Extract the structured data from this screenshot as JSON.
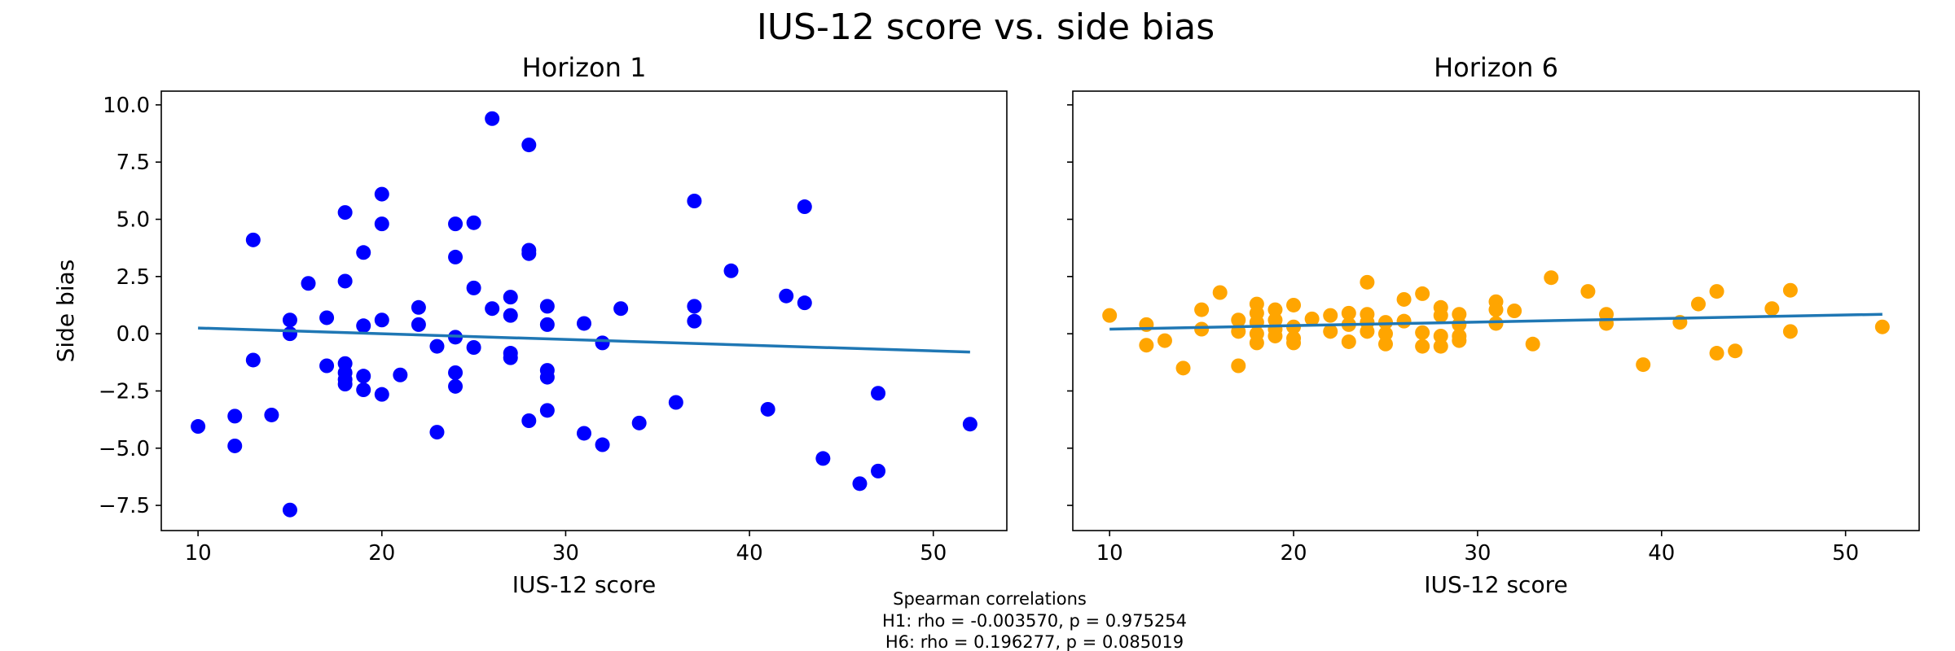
{
  "figure": {
    "suptitle": "IUS-12 score vs. side bias",
    "footnote": [
      "Spearman correlations",
      "H1: rho = -0.003570, p = 0.975254",
      "H6: rho = 0.196277, p = 0.085019"
    ]
  },
  "chart_data": [
    {
      "type": "scatter",
      "title": "Horizon 1",
      "xlabel": "IUS-12 score",
      "ylabel": "Side bias",
      "xlim": [
        8,
        54
      ],
      "ylim": [
        -8.6,
        10.6
      ],
      "xticks": [
        10,
        20,
        30,
        40,
        50
      ],
      "yticks": [
        -7.5,
        -5.0,
        -2.5,
        0.0,
        2.5,
        5.0,
        7.5,
        10.0
      ],
      "ytick_labels": [
        "−7.5",
        "−5.0",
        "−2.5",
        "0.0",
        "2.5",
        "5.0",
        "7.5",
        "10.0"
      ],
      "marker_color": "#0000ff",
      "trend_color": "#1f77b4",
      "trend": {
        "x": [
          10,
          52
        ],
        "y": [
          0.25,
          -0.8
        ]
      },
      "points": [
        [
          10,
          -4.05
        ],
        [
          12,
          -3.6
        ],
        [
          12,
          -4.9
        ],
        [
          13,
          4.1
        ],
        [
          13,
          -1.15
        ],
        [
          14,
          -3.55
        ],
        [
          15,
          0.6
        ],
        [
          15,
          0.0
        ],
        [
          15,
          -7.7
        ],
        [
          16,
          2.2
        ],
        [
          17,
          0.7
        ],
        [
          17,
          -1.4
        ],
        [
          18,
          5.3
        ],
        [
          18,
          2.3
        ],
        [
          18,
          -1.3
        ],
        [
          18,
          -1.7
        ],
        [
          18,
          -2.0
        ],
        [
          18,
          -2.2
        ],
        [
          19,
          3.55
        ],
        [
          19,
          0.35
        ],
        [
          19,
          -1.85
        ],
        [
          19,
          -2.45
        ],
        [
          20,
          6.1
        ],
        [
          20,
          4.8
        ],
        [
          20,
          0.6
        ],
        [
          20,
          -2.65
        ],
        [
          21,
          -1.8
        ],
        [
          22,
          1.15
        ],
        [
          22,
          0.4
        ],
        [
          23,
          -0.55
        ],
        [
          23,
          -4.3
        ],
        [
          24,
          4.8
        ],
        [
          24,
          3.35
        ],
        [
          24,
          -0.15
        ],
        [
          24,
          -1.7
        ],
        [
          24,
          -2.3
        ],
        [
          25,
          4.85
        ],
        [
          25,
          2.0
        ],
        [
          25,
          -0.6
        ],
        [
          26,
          9.4
        ],
        [
          26,
          1.1
        ],
        [
          27,
          1.6
        ],
        [
          27,
          0.8
        ],
        [
          27,
          -0.85
        ],
        [
          27,
          -1.05
        ],
        [
          28,
          8.25
        ],
        [
          28,
          3.65
        ],
        [
          28,
          3.5
        ],
        [
          28,
          -3.8
        ],
        [
          29,
          1.2
        ],
        [
          29,
          0.4
        ],
        [
          29,
          -1.6
        ],
        [
          29,
          -1.9
        ],
        [
          29,
          -3.35
        ],
        [
          31,
          0.45
        ],
        [
          31,
          -4.35
        ],
        [
          32,
          -0.4
        ],
        [
          32,
          -4.85
        ],
        [
          33,
          1.1
        ],
        [
          34,
          -3.9
        ],
        [
          36,
          -3.0
        ],
        [
          37,
          5.8
        ],
        [
          37,
          1.2
        ],
        [
          37,
          0.55
        ],
        [
          39,
          2.75
        ],
        [
          41,
          -3.3
        ],
        [
          42,
          1.65
        ],
        [
          43,
          5.55
        ],
        [
          43,
          1.35
        ],
        [
          44,
          -5.45
        ],
        [
          46,
          -6.55
        ],
        [
          47,
          -2.6
        ],
        [
          47,
          -6.0
        ],
        [
          52,
          -3.95
        ]
      ]
    },
    {
      "type": "scatter",
      "title": "Horizon 6",
      "xlabel": "IUS-12 score",
      "ylabel": "",
      "xlim": [
        8,
        54
      ],
      "ylim": [
        -8.6,
        10.6
      ],
      "xticks": [
        10,
        20,
        30,
        40,
        50
      ],
      "yticks": [
        -7.5,
        -5.0,
        -2.5,
        0.0,
        2.5,
        5.0,
        7.5,
        10.0
      ],
      "marker_color": "#ffa500",
      "trend_color": "#1f77b4",
      "trend": {
        "x": [
          10,
          52
        ],
        "y": [
          0.2,
          0.85
        ]
      },
      "points": [
        [
          10,
          0.8
        ],
        [
          12,
          0.4
        ],
        [
          12,
          -0.5
        ],
        [
          13,
          -0.3
        ],
        [
          14,
          -1.5
        ],
        [
          15,
          1.05
        ],
        [
          15,
          0.2
        ],
        [
          16,
          1.8
        ],
        [
          17,
          0.6
        ],
        [
          17,
          0.1
        ],
        [
          17,
          -1.4
        ],
        [
          18,
          1.3
        ],
        [
          18,
          0.9
        ],
        [
          18,
          0.5
        ],
        [
          18,
          0.0
        ],
        [
          18,
          -0.4
        ],
        [
          19,
          1.05
        ],
        [
          19,
          0.6
        ],
        [
          19,
          0.2
        ],
        [
          19,
          -0.1
        ],
        [
          20,
          1.25
        ],
        [
          20,
          0.3
        ],
        [
          20,
          -0.2
        ],
        [
          20,
          -0.4
        ],
        [
          21,
          0.65
        ],
        [
          22,
          0.8
        ],
        [
          22,
          0.1
        ],
        [
          23,
          0.9
        ],
        [
          23,
          0.4
        ],
        [
          23,
          -0.35
        ],
        [
          24,
          2.25
        ],
        [
          24,
          0.85
        ],
        [
          24,
          0.5
        ],
        [
          24,
          0.1
        ],
        [
          25,
          0.5
        ],
        [
          25,
          0.0
        ],
        [
          25,
          -0.45
        ],
        [
          26,
          1.5
        ],
        [
          26,
          0.55
        ],
        [
          27,
          1.75
        ],
        [
          27,
          0.05
        ],
        [
          27,
          -0.55
        ],
        [
          28,
          1.15
        ],
        [
          28,
          0.8
        ],
        [
          28,
          -0.1
        ],
        [
          28,
          -0.55
        ],
        [
          29,
          0.85
        ],
        [
          29,
          0.4
        ],
        [
          29,
          -0.1
        ],
        [
          29,
          -0.3
        ],
        [
          31,
          1.4
        ],
        [
          31,
          1.05
        ],
        [
          31,
          0.45
        ],
        [
          32,
          1.0
        ],
        [
          33,
          -0.45
        ],
        [
          34,
          2.45
        ],
        [
          36,
          1.85
        ],
        [
          37,
          0.85
        ],
        [
          37,
          0.45
        ],
        [
          39,
          -1.35
        ],
        [
          41,
          0.5
        ],
        [
          42,
          1.3
        ],
        [
          43,
          1.85
        ],
        [
          43,
          -0.85
        ],
        [
          44,
          -0.75
        ],
        [
          46,
          1.1
        ],
        [
          47,
          1.9
        ],
        [
          47,
          0.1
        ],
        [
          52,
          0.3
        ]
      ]
    }
  ]
}
